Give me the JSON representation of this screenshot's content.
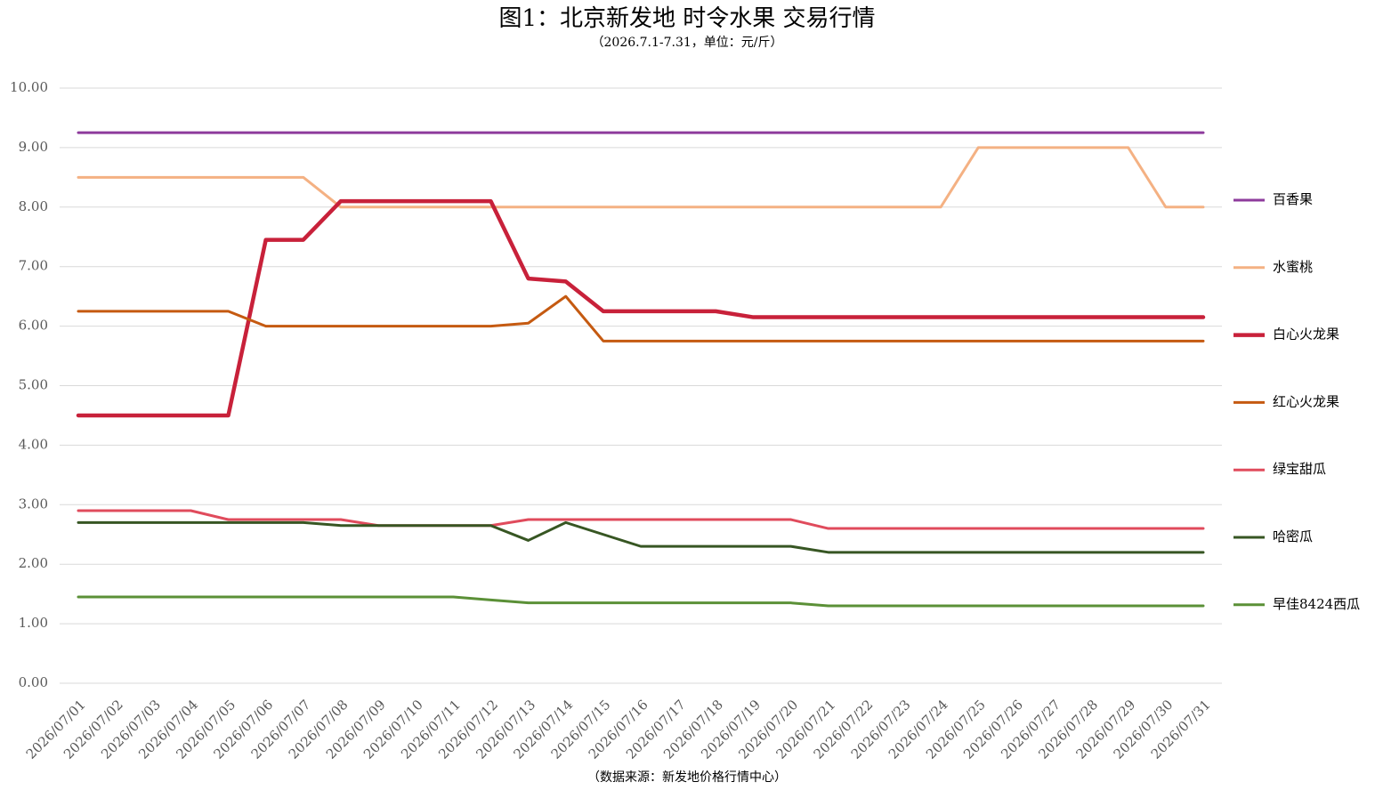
{
  "chart_data": {
    "type": "line",
    "title": "图1：北京新发地 时令水果 交易行情",
    "subtitle": "（2026.7.1-7.31，单位：元/斤）",
    "source": "（数据来源：新发地价格行情中心）",
    "categories": [
      "2026/07/01",
      "2026/07/02",
      "2026/07/03",
      "2026/07/04",
      "2026/07/05",
      "2026/07/06",
      "2026/07/07",
      "2026/07/08",
      "2026/07/09",
      "2026/07/10",
      "2026/07/11",
      "2026/07/12",
      "2026/07/13",
      "2026/07/14",
      "2026/07/15",
      "2026/07/16",
      "2026/07/17",
      "2026/07/18",
      "2026/07/19",
      "2026/07/20",
      "2026/07/21",
      "2026/07/22",
      "2026/07/23",
      "2026/07/24",
      "2026/07/25",
      "2026/07/26",
      "2026/07/27",
      "2026/07/28",
      "2026/07/29",
      "2026/07/30",
      "2026/07/31"
    ],
    "series": [
      {
        "name": "百香果",
        "color": "#8e3b9c",
        "values": [
          9.25,
          9.25,
          9.25,
          9.25,
          9.25,
          9.25,
          9.25,
          9.25,
          9.25,
          9.25,
          9.25,
          9.25,
          9.25,
          9.25,
          9.25,
          9.25,
          9.25,
          9.25,
          9.25,
          9.25,
          9.25,
          9.25,
          9.25,
          9.25,
          9.25,
          9.25,
          9.25,
          9.25,
          9.25,
          9.25,
          9.25
        ]
      },
      {
        "name": "水蜜桃",
        "color": "#f4b183",
        "values": [
          8.5,
          8.5,
          8.5,
          8.5,
          8.5,
          8.5,
          8.5,
          8.0,
          8.0,
          8.0,
          8.0,
          8.0,
          8.0,
          8.0,
          8.0,
          8.0,
          8.0,
          8.0,
          8.0,
          8.0,
          8.0,
          8.0,
          8.0,
          8.0,
          9.0,
          9.0,
          9.0,
          9.0,
          9.0,
          8.0,
          8.0
        ]
      },
      {
        "name": "白心火龙果",
        "color": "#c8213a",
        "values": [
          4.5,
          4.5,
          4.5,
          4.5,
          4.5,
          7.45,
          7.45,
          8.1,
          8.1,
          8.1,
          8.1,
          8.1,
          6.8,
          6.75,
          6.25,
          6.25,
          6.25,
          6.25,
          6.15,
          6.15,
          6.15,
          6.15,
          6.15,
          6.15,
          6.15,
          6.15,
          6.15,
          6.15,
          6.15,
          6.15,
          6.15
        ]
      },
      {
        "name": "红心火龙果",
        "color": "#c55a11",
        "values": [
          6.25,
          6.25,
          6.25,
          6.25,
          6.25,
          6.0,
          6.0,
          6.0,
          6.0,
          6.0,
          6.0,
          6.0,
          6.05,
          6.5,
          5.75,
          5.75,
          5.75,
          5.75,
          5.75,
          5.75,
          5.75,
          5.75,
          5.75,
          5.75,
          5.75,
          5.75,
          5.75,
          5.75,
          5.75,
          5.75,
          5.75
        ]
      },
      {
        "name": "绿宝甜瓜",
        "color": "#e04b5c",
        "values": [
          2.9,
          2.9,
          2.9,
          2.9,
          2.75,
          2.75,
          2.75,
          2.75,
          2.65,
          2.65,
          2.65,
          2.65,
          2.75,
          2.75,
          2.75,
          2.75,
          2.75,
          2.75,
          2.75,
          2.75,
          2.6,
          2.6,
          2.6,
          2.6,
          2.6,
          2.6,
          2.6,
          2.6,
          2.6,
          2.6,
          2.6
        ]
      },
      {
        "name": "哈密瓜",
        "color": "#375623",
        "values": [
          2.7,
          2.7,
          2.7,
          2.7,
          2.7,
          2.7,
          2.7,
          2.65,
          2.65,
          2.65,
          2.65,
          2.65,
          2.4,
          2.7,
          2.5,
          2.3,
          2.3,
          2.3,
          2.3,
          2.3,
          2.2,
          2.2,
          2.2,
          2.2,
          2.2,
          2.2,
          2.2,
          2.2,
          2.2,
          2.2,
          2.2
        ]
      },
      {
        "name": "早佳8424西瓜",
        "color": "#5b9037",
        "values": [
          1.45,
          1.45,
          1.45,
          1.45,
          1.45,
          1.45,
          1.45,
          1.45,
          1.45,
          1.45,
          1.45,
          1.4,
          1.35,
          1.35,
          1.35,
          1.35,
          1.35,
          1.35,
          1.35,
          1.35,
          1.3,
          1.3,
          1.3,
          1.3,
          1.3,
          1.3,
          1.3,
          1.3,
          1.3,
          1.3,
          1.3
        ]
      }
    ],
    "ylim": [
      0,
      10
    ],
    "yticks": [
      {
        "value": 0,
        "label": "0.00"
      },
      {
        "value": 1,
        "label": "1.00"
      },
      {
        "value": 2,
        "label": "2.00"
      },
      {
        "value": 3,
        "label": "3.00"
      },
      {
        "value": 4,
        "label": "4.00"
      },
      {
        "value": 5,
        "label": "5.00"
      },
      {
        "value": 6,
        "label": "6.00"
      },
      {
        "value": 7,
        "label": "7.00"
      },
      {
        "value": 8,
        "label": "8.00"
      },
      {
        "value": 9,
        "label": "9.00"
      },
      {
        "value": 10,
        "label": "10.00"
      }
    ],
    "grid": true,
    "legend": "right"
  }
}
